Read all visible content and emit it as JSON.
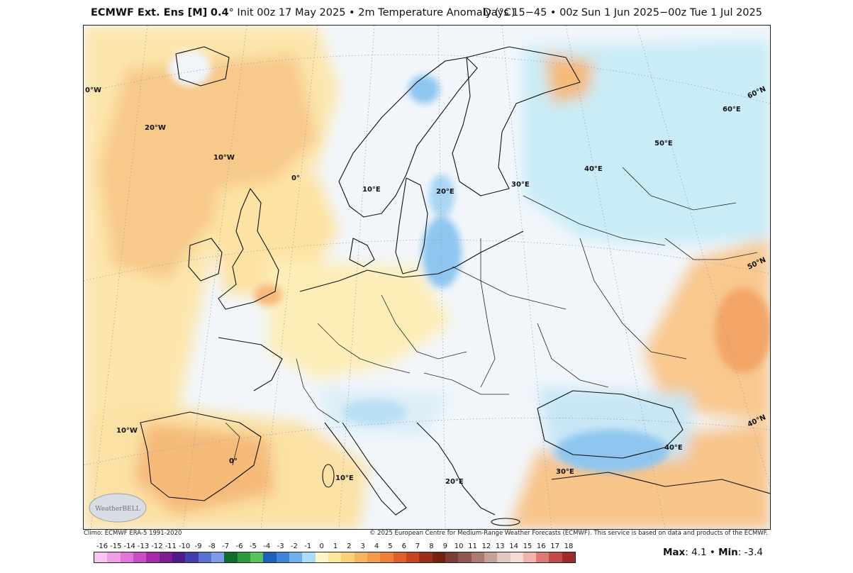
{
  "header": {
    "model": "ECMWF Ext. Ens [M]",
    "resolution": "0.4",
    "degree": "°",
    "init": "Init 00z 17 May 2025",
    "bullet": "•",
    "variable": "2m Temperature Anomaly (",
    "unit": "°C",
    "variable_end": ")",
    "range": "Days 15−45 • 00z Sun 1 Jun 2025−00z Tue 1 Jul 2025"
  },
  "credits": {
    "climo": "Climo: ECMWF ERA-5 1991-2020",
    "copyright": "© 2025 European Centre for Medium-Range Weather Forecasts (ECMWF). This service is based on data and products of the ECMWF."
  },
  "logo": {
    "text": "WeatherBELL"
  },
  "stats": {
    "max_label": "Max",
    "max_value": "4.1",
    "sep": "•",
    "min_label": "Min",
    "min_value": "-3.4"
  },
  "graticule_labels": [
    "0°W",
    "20°W",
    "10°W",
    "0°",
    "10°E",
    "20°E",
    "30°E",
    "40°E",
    "50°E",
    "60°E",
    "60°N",
    "50°N",
    "40°N",
    "10°W",
    "0°",
    "10°E",
    "20°E",
    "30°E",
    "40°E"
  ],
  "colorbar": {
    "ticks": [
      "-16",
      "-15",
      "-14",
      "-13",
      "-12",
      "-11",
      "-10",
      "-9",
      "-8",
      "-7",
      "-6",
      "-5",
      "-4",
      "-3",
      "-2",
      "-1",
      "0",
      "1",
      "2",
      "3",
      "4",
      "5",
      "6",
      "7",
      "8",
      "9",
      "10",
      "11",
      "12",
      "13",
      "14",
      "15",
      "16",
      "17",
      "18"
    ],
    "colors": [
      "#f7c6f0",
      "#ef9fe6",
      "#e176d8",
      "#c94ec6",
      "#a62aa9",
      "#7d1d8e",
      "#4d1c8a",
      "#3f3fb0",
      "#5b6fd1",
      "#7d9be6",
      "#0f6d2c",
      "#2e9a3c",
      "#59c25a",
      "#1f5fc0",
      "#3f86da",
      "#6fb0ec",
      "#a9dcf5",
      "#fff5c9",
      "#fde79a",
      "#fbd07a",
      "#f7b45e",
      "#f39a4b",
      "#ee7f3b",
      "#e0602d",
      "#c54524",
      "#9a2f1a",
      "#73230f",
      "#7a3e36",
      "#92584f",
      "#ab7b70",
      "#c7a097",
      "#e2c7c0",
      "#f3dcd6",
      "#f0b6ae",
      "#dc7a75",
      "#c14a4a",
      "#9e2a2a"
    ]
  }
}
